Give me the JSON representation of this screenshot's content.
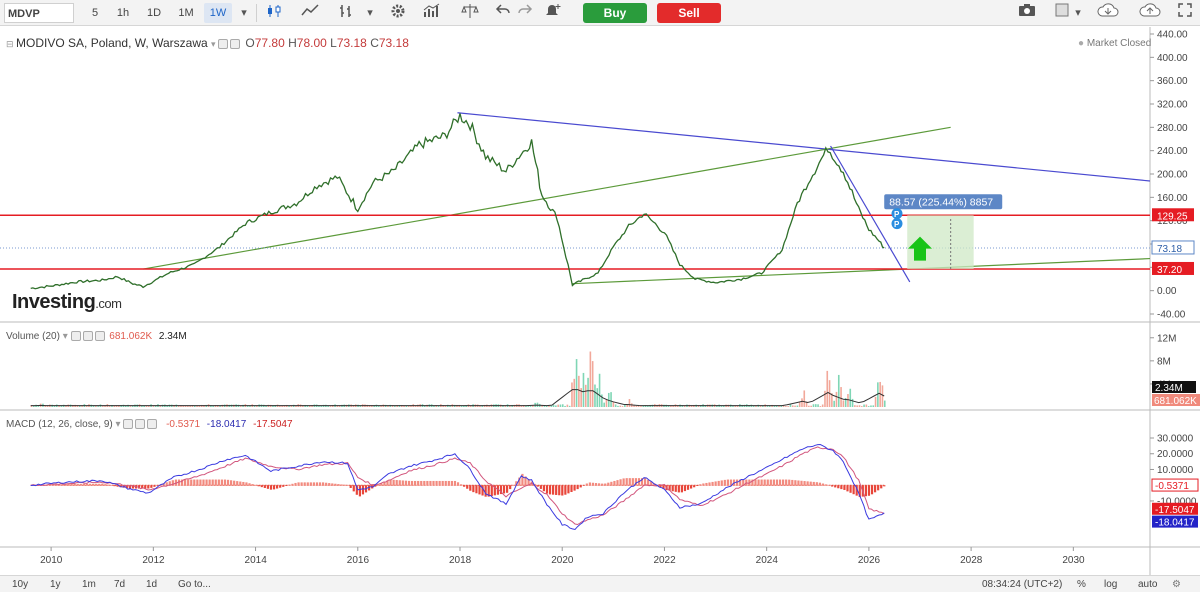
{
  "toolbar": {
    "symbol": "MDVP",
    "intervals": [
      "5",
      "1h",
      "1D",
      "1M",
      "1W"
    ],
    "active_interval": "1W",
    "buy_label": "Buy",
    "sell_label": "Sell",
    "icons": [
      "candles-icon",
      "line-chart-icon",
      "bars-icon",
      "chevron-down-icon",
      "gear-icon",
      "indicators-icon",
      "compare-icon",
      "undo-icon",
      "redo-icon",
      "alert-icon",
      "camera-icon",
      "color-square-icon",
      "cloud-load-icon",
      "cloud-save-icon",
      "fullscreen-icon"
    ]
  },
  "legend": {
    "title": "MODIVO SA, Poland, W, Warszawa",
    "o_label": "O",
    "o": "77.80",
    "h_label": "H",
    "h": "78.00",
    "l_label": "L",
    "l": "73.18",
    "c_label": "C",
    "c": "73.18",
    "market_status": "Market Closed",
    "volume_title": "Volume (20)",
    "volume_v1": "681.062K",
    "volume_v2": "2.34M",
    "macd_title": "MACD (12, 26, close, 9)",
    "macd_v1": "-0.5371",
    "macd_v2": "-18.0417",
    "macd_v3": "-17.5047"
  },
  "brand": {
    "name": "Investing",
    "suffix": ".com"
  },
  "measure_label": "88.57 (225.44%) 8857",
  "chart_data": [
    {
      "type": "line",
      "name": "price",
      "x_ticks": [
        "2010",
        "2012",
        "2014",
        "2016",
        "2018",
        "2020",
        "2022",
        "2024",
        "2026",
        "2028",
        "2030"
      ],
      "y_ticks": [
        "440.00",
        "400.00",
        "360.00",
        "320.00",
        "280.00",
        "240.00",
        "200.00",
        "160.00",
        "120.00",
        "80.00",
        "40.00",
        "0.00",
        "-40.00"
      ],
      "ylim": [
        -40,
        440
      ],
      "xlim": [
        2009.0,
        2031.5
      ],
      "close": [
        [
          2009.6,
          4
        ],
        [
          2010.0,
          8
        ],
        [
          2010.5,
          15
        ],
        [
          2011.0,
          18
        ],
        [
          2011.3,
          24
        ],
        [
          2011.6,
          12
        ],
        [
          2011.8,
          7
        ],
        [
          2012.3,
          30
        ],
        [
          2012.8,
          45
        ],
        [
          2013.3,
          75
        ],
        [
          2013.8,
          115
        ],
        [
          2014.3,
          135
        ],
        [
          2014.8,
          150
        ],
        [
          2015.2,
          180
        ],
        [
          2015.6,
          195
        ],
        [
          2016.0,
          140
        ],
        [
          2016.3,
          185
        ],
        [
          2016.7,
          205
        ],
        [
          2017.2,
          250
        ],
        [
          2017.7,
          265
        ],
        [
          2018.0,
          300
        ],
        [
          2018.2,
          285
        ],
        [
          2018.5,
          230
        ],
        [
          2018.9,
          205
        ],
        [
          2019.2,
          235
        ],
        [
          2019.4,
          255
        ],
        [
          2019.6,
          165
        ],
        [
          2019.9,
          125
        ],
        [
          2020.2,
          10
        ],
        [
          2020.4,
          18
        ],
        [
          2020.7,
          30
        ],
        [
          2021.0,
          75
        ],
        [
          2021.3,
          110
        ],
        [
          2021.6,
          132
        ],
        [
          2022.0,
          100
        ],
        [
          2022.3,
          45
        ],
        [
          2022.6,
          20
        ],
        [
          2023.0,
          14
        ],
        [
          2023.5,
          20
        ],
        [
          2023.9,
          30
        ],
        [
          2024.3,
          70
        ],
        [
          2024.6,
          150
        ],
        [
          2024.9,
          200
        ],
        [
          2025.2,
          245
        ],
        [
          2025.5,
          205
        ],
        [
          2025.8,
          140
        ],
        [
          2026.0,
          105
        ],
        [
          2026.2,
          85
        ],
        [
          2026.3,
          73.18
        ]
      ],
      "last_price": "73.18",
      "hlines": [
        {
          "value": 129.25,
          "label": "129.25",
          "color": "#e51c23"
        },
        {
          "value": 37.2,
          "label": "37.20",
          "color": "#e51c23"
        }
      ],
      "trendlines": [
        {
          "from": [
            2017.95,
            305
          ],
          "to": [
            2031.5,
            188
          ],
          "color": "#4a4ad0"
        },
        {
          "from": [
            2011.8,
            37
          ],
          "to": [
            2027.6,
            280
          ],
          "color": "#5c9a3a"
        },
        {
          "from": [
            2020.2,
            12
          ],
          "to": [
            2031.5,
            55
          ],
          "color": "#5c9a3a"
        },
        {
          "from": [
            2025.25,
            248
          ],
          "to": [
            2026.8,
            15
          ],
          "color": "#4a4ad0"
        }
      ]
    },
    {
      "type": "bar",
      "name": "Volume (20)",
      "y_ticks": [
        "12M",
        "8M",
        "4M"
      ],
      "ylim": [
        0,
        13
      ],
      "last_labels": [
        "2.34M",
        "681.062K"
      ],
      "bursts": [
        {
          "x": 2009.8,
          "v": 1.0
        },
        {
          "x": 2014.2,
          "v": 0.4
        },
        {
          "x": 2016.5,
          "v": 0.5
        },
        {
          "x": 2017.5,
          "v": 0.6
        },
        {
          "x": 2019.5,
          "v": 1.2
        },
        {
          "x": 2020.25,
          "v": 12.0
        },
        {
          "x": 2020.4,
          "v": 9.5
        },
        {
          "x": 2020.55,
          "v": 11.2
        },
        {
          "x": 2020.7,
          "v": 7.0
        },
        {
          "x": 2020.9,
          "v": 4.0
        },
        {
          "x": 2021.3,
          "v": 1.5
        },
        {
          "x": 2024.7,
          "v": 3.5
        },
        {
          "x": 2025.2,
          "v": 9.0
        },
        {
          "x": 2025.4,
          "v": 6.0
        },
        {
          "x": 2025.6,
          "v": 4.5
        },
        {
          "x": 2026.2,
          "v": 8.5
        }
      ]
    },
    {
      "type": "line",
      "name": "MACD (12, 26, close, 9)",
      "y_ticks": [
        "30.0000",
        "20.0000",
        "10.0000",
        "-10.0000"
      ],
      "ylim": [
        -31,
        30
      ],
      "last_labels": [
        "-0.5371",
        "-17.5047",
        "-18.0417"
      ],
      "macd": [
        [
          2009.6,
          0
        ],
        [
          2010.3,
          2
        ],
        [
          2011.0,
          3
        ],
        [
          2011.5,
          -2
        ],
        [
          2011.9,
          -5
        ],
        [
          2012.4,
          5
        ],
        [
          2012.9,
          10
        ],
        [
          2013.4,
          16
        ],
        [
          2013.8,
          19
        ],
        [
          2014.3,
          9
        ],
        [
          2014.8,
          12
        ],
        [
          2015.3,
          15
        ],
        [
          2015.8,
          14
        ],
        [
          2016.0,
          -3
        ],
        [
          2016.3,
          -1
        ],
        [
          2016.6,
          7
        ],
        [
          2017.0,
          12
        ],
        [
          2017.5,
          16
        ],
        [
          2017.9,
          20
        ],
        [
          2018.2,
          10
        ],
        [
          2018.5,
          -5
        ],
        [
          2018.9,
          -12
        ],
        [
          2019.2,
          6
        ],
        [
          2019.4,
          3
        ],
        [
          2019.7,
          -12
        ],
        [
          2020.0,
          -25
        ],
        [
          2020.25,
          -28
        ],
        [
          2020.5,
          -20
        ],
        [
          2020.8,
          -18
        ],
        [
          2021.2,
          -5
        ],
        [
          2021.6,
          5
        ],
        [
          2022.0,
          -3
        ],
        [
          2022.3,
          -14
        ],
        [
          2022.7,
          -12
        ],
        [
          2023.2,
          -2
        ],
        [
          2023.6,
          5
        ],
        [
          2024.0,
          11
        ],
        [
          2024.4,
          18
        ],
        [
          2024.7,
          23
        ],
        [
          2025.0,
          26
        ],
        [
          2025.3,
          22
        ],
        [
          2025.5,
          15
        ],
        [
          2025.8,
          -5
        ],
        [
          2026.0,
          -22
        ],
        [
          2026.3,
          -18
        ]
      ],
      "signal": [
        [
          2009.6,
          0
        ],
        [
          2010.3,
          1
        ],
        [
          2011.0,
          2
        ],
        [
          2011.5,
          0
        ],
        [
          2011.9,
          -3
        ],
        [
          2012.4,
          1
        ],
        [
          2012.9,
          6
        ],
        [
          2013.4,
          12
        ],
        [
          2013.8,
          17
        ],
        [
          2014.3,
          12
        ],
        [
          2014.8,
          10
        ],
        [
          2015.3,
          13
        ],
        [
          2015.8,
          14
        ],
        [
          2016.0,
          5
        ],
        [
          2016.3,
          0
        ],
        [
          2016.6,
          3
        ],
        [
          2017.0,
          9
        ],
        [
          2017.5,
          13
        ],
        [
          2017.9,
          17
        ],
        [
          2018.2,
          14
        ],
        [
          2018.5,
          3
        ],
        [
          2018.9,
          -7
        ],
        [
          2019.2,
          -2
        ],
        [
          2019.4,
          1
        ],
        [
          2019.7,
          -6
        ],
        [
          2020.0,
          -18
        ],
        [
          2020.25,
          -25
        ],
        [
          2020.5,
          -22
        ],
        [
          2020.8,
          -19
        ],
        [
          2021.2,
          -10
        ],
        [
          2021.6,
          0
        ],
        [
          2022.0,
          0
        ],
        [
          2022.3,
          -9
        ],
        [
          2022.7,
          -13
        ],
        [
          2023.2,
          -6
        ],
        [
          2023.6,
          1
        ],
        [
          2024.0,
          7
        ],
        [
          2024.4,
          14
        ],
        [
          2024.7,
          20
        ],
        [
          2025.0,
          24
        ],
        [
          2025.3,
          23
        ],
        [
          2025.5,
          18
        ],
        [
          2025.8,
          3
        ],
        [
          2026.0,
          -15
        ],
        [
          2026.3,
          -18
        ]
      ]
    }
  ],
  "bottombar": {
    "ranges": [
      "10y",
      "1y",
      "1m",
      "7d",
      "1d"
    ],
    "goto_label": "Go to...",
    "clock": "08:34:24 (UTC+2)",
    "opts": [
      "%",
      "log",
      "auto"
    ]
  }
}
